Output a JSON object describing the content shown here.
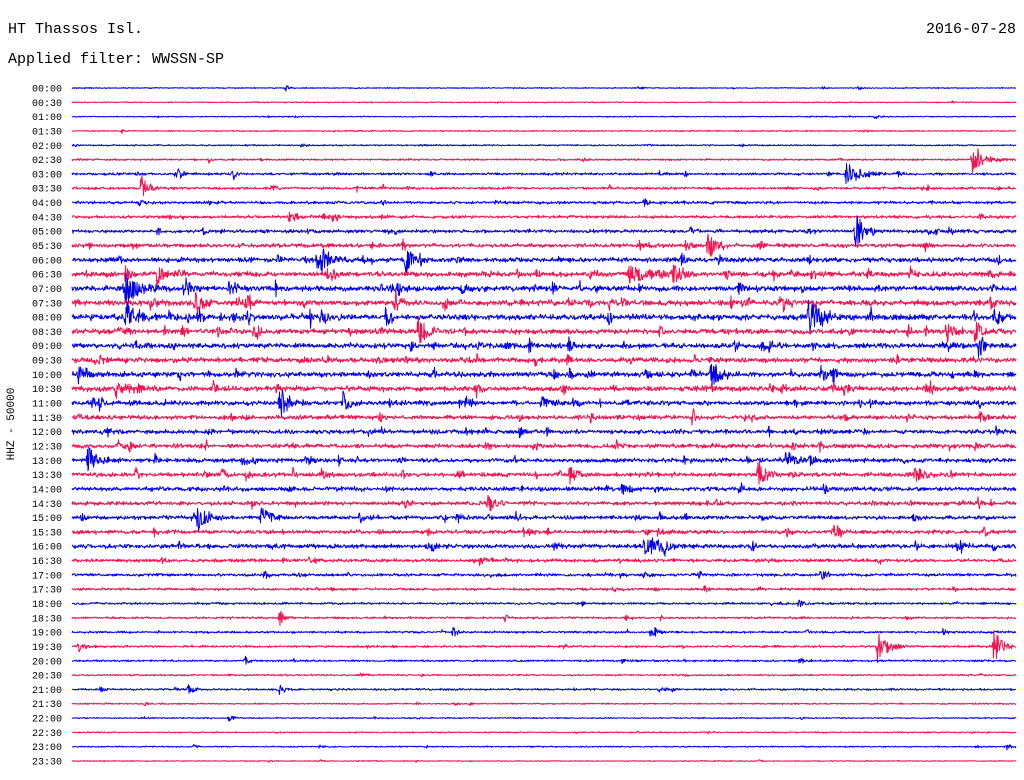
{
  "chart_data": {
    "type": "line",
    "title": "HT Thassos Isl.",
    "date": "2016-07-28",
    "subtitle": "Applied filter: WWSSN-SP",
    "ylabel": "HHZ - 50000",
    "xlim": [
      0,
      30
    ],
    "colors": [
      "#0000ee",
      "#f5104e"
    ],
    "rows": [
      {
        "label": "00:00",
        "noise": 2500,
        "events": [
          [
            6.8,
            12000,
            0.3
          ],
          [
            18.0,
            14000,
            0.3
          ],
          [
            25.0,
            10000,
            0.3
          ]
        ]
      },
      {
        "label": "00:30",
        "noise": 2500,
        "events": []
      },
      {
        "label": "01:00",
        "noise": 2500,
        "events": [
          [
            25.5,
            10000,
            0.3
          ]
        ]
      },
      {
        "label": "01:30",
        "noise": 3000,
        "events": []
      },
      {
        "label": "02:00",
        "noise": 3500,
        "events": []
      },
      {
        "label": "02:30",
        "noise": 4500,
        "events": [
          [
            28.6,
            50000,
            1.0
          ]
        ]
      },
      {
        "label": "03:00",
        "noise": 5500,
        "events": [
          [
            3.3,
            32000,
            0.5
          ],
          [
            5.1,
            25000,
            0.4
          ],
          [
            24.6,
            42000,
            1.2
          ]
        ]
      },
      {
        "label": "03:30",
        "noise": 6000,
        "events": [
          [
            2.2,
            50000,
            0.6
          ]
        ]
      },
      {
        "label": "04:00",
        "noise": 6500,
        "events": []
      },
      {
        "label": "04:30",
        "noise": 7000,
        "events": [
          [
            6.9,
            28000,
            0.6
          ]
        ]
      },
      {
        "label": "05:00",
        "noise": 8000,
        "events": [
          [
            23.4,
            15000,
            0.4
          ],
          [
            24.9,
            63000,
            0.8
          ]
        ]
      },
      {
        "label": "05:30",
        "noise": 9000,
        "events": [
          [
            10.5,
            35000,
            0.2
          ],
          [
            20.2,
            50000,
            0.7
          ]
        ]
      },
      {
        "label": "06:00",
        "noise": 11000,
        "events": [
          [
            7.8,
            70000,
            0.8
          ],
          [
            10.6,
            52000,
            0.6
          ]
        ]
      },
      {
        "label": "06:30",
        "noise": 12000,
        "events": [
          [
            1.7,
            35000,
            0.5
          ],
          [
            2.7,
            42000,
            0.7
          ],
          [
            17.7,
            35000,
            2.0
          ],
          [
            19.1,
            50000,
            0.8
          ]
        ]
      },
      {
        "label": "07:00",
        "noise": 13000,
        "events": [
          [
            1.7,
            63000,
            1.0
          ],
          [
            12.4,
            28000,
            0.6
          ]
        ]
      },
      {
        "label": "07:30",
        "noise": 13000,
        "events": [
          [
            2.5,
            35000,
            0.5
          ],
          [
            3.9,
            52000,
            0.7
          ],
          [
            5.5,
            35000,
            0.5
          ],
          [
            10.3,
            28000,
            0.4
          ],
          [
            22.6,
            28000,
            0.5
          ]
        ]
      },
      {
        "label": "08:00",
        "noise": 14000,
        "events": [
          [
            1.7,
            63000,
            1.0
          ],
          [
            7.9,
            35000,
            0.6
          ],
          [
            23.4,
            77000,
            1.0
          ],
          [
            29.3,
            52000,
            0.6
          ]
        ]
      },
      {
        "label": "08:30",
        "noise": 12000,
        "events": [
          [
            11.0,
            56000,
            0.8
          ],
          [
            27.8,
            49000,
            0.7
          ],
          [
            28.7,
            49000,
            0.6
          ]
        ]
      },
      {
        "label": "09:00",
        "noise": 12000,
        "events": [
          [
            27.7,
            35000,
            0.5
          ],
          [
            28.8,
            42000,
            0.6
          ]
        ]
      },
      {
        "label": "09:30",
        "noise": 12000,
        "events": [
          [
            0.7,
            20000,
            0.5
          ]
        ]
      },
      {
        "label": "10:00",
        "noise": 12000,
        "events": [
          [
            0.2,
            42000,
            0.7
          ],
          [
            20.3,
            56000,
            0.8
          ],
          [
            23.8,
            35000,
            0.6
          ]
        ]
      },
      {
        "label": "10:30",
        "noise": 12000,
        "events": [
          [
            1.4,
            35000,
            0.6
          ]
        ]
      },
      {
        "label": "11:00",
        "noise": 11000,
        "events": [
          [
            6.6,
            56000,
            0.7
          ],
          [
            8.6,
            49000,
            0.6
          ],
          [
            12.5,
            28000,
            0.5
          ],
          [
            14.9,
            35000,
            0.6
          ]
        ]
      },
      {
        "label": "11:30",
        "noise": 10000,
        "events": []
      },
      {
        "label": "12:00",
        "noise": 10000,
        "events": [
          [
            13.1,
            18000,
            0.5
          ]
        ]
      },
      {
        "label": "12:30",
        "noise": 10000,
        "events": []
      },
      {
        "label": "13:00",
        "noise": 10000,
        "events": [
          [
            0.5,
            56000,
            0.8
          ],
          [
            22.7,
            42000,
            0.7
          ]
        ]
      },
      {
        "label": "13:30",
        "noise": 10000,
        "events": [
          [
            15.8,
            35000,
            0.6
          ],
          [
            21.8,
            49000,
            0.8
          ],
          [
            26.8,
            35000,
            0.7
          ]
        ]
      },
      {
        "label": "14:00",
        "noise": 10000,
        "events": []
      },
      {
        "label": "14:30",
        "noise": 9000,
        "events": [
          [
            13.2,
            42000,
            0.6
          ]
        ]
      },
      {
        "label": "15:00",
        "noise": 9000,
        "events": [
          [
            4.0,
            56000,
            0.8
          ],
          [
            6.0,
            49000,
            0.7
          ]
        ]
      },
      {
        "label": "15:30",
        "noise": 9000,
        "events": [
          [
            24.2,
            35000,
            0.6
          ]
        ]
      },
      {
        "label": "16:00",
        "noise": 10000,
        "events": [
          [
            15.3,
            21000,
            0.5
          ],
          [
            18.2,
            42000,
            1.6
          ]
        ]
      },
      {
        "label": "16:30",
        "noise": 8000,
        "events": []
      },
      {
        "label": "17:00",
        "noise": 7000,
        "events": [
          [
            23.8,
            21000,
            0.5
          ]
        ]
      },
      {
        "label": "17:30",
        "noise": 6000,
        "events": []
      },
      {
        "label": "18:00",
        "noise": 5000,
        "events": [
          [
            23.1,
            18000,
            0.4
          ]
        ]
      },
      {
        "label": "18:30",
        "noise": 5000,
        "events": [
          [
            6.6,
            28000,
            0.4
          ]
        ]
      },
      {
        "label": "19:00",
        "noise": 5000,
        "events": [
          [
            12.1,
            21000,
            0.4
          ],
          [
            18.4,
            28000,
            0.5
          ]
        ]
      },
      {
        "label": "19:30",
        "noise": 5000,
        "events": [
          [
            0.2,
            21000,
            0.6
          ],
          [
            25.6,
            63000,
            0.8
          ],
          [
            29.3,
            63000,
            0.6
          ]
        ]
      },
      {
        "label": "20:00",
        "noise": 4500,
        "events": [
          [
            5.5,
            18000,
            0.4
          ]
        ]
      },
      {
        "label": "20:30",
        "noise": 4000,
        "events": []
      },
      {
        "label": "21:00",
        "noise": 4500,
        "events": [
          [
            0.9,
            14000,
            0.4
          ],
          [
            3.7,
            18000,
            0.5
          ],
          [
            6.6,
            18000,
            0.5
          ]
        ]
      },
      {
        "label": "21:30",
        "noise": 3500,
        "events": []
      },
      {
        "label": "22:00",
        "noise": 3000,
        "events": [
          [
            5.0,
            14000,
            0.4
          ]
        ]
      },
      {
        "label": "22:30",
        "noise": 3000,
        "events": []
      },
      {
        "label": "23:00",
        "noise": 3000,
        "events": [
          [
            29.7,
            14000,
            0.3
          ]
        ]
      },
      {
        "label": "23:30",
        "noise": 2500,
        "events": []
      }
    ]
  }
}
